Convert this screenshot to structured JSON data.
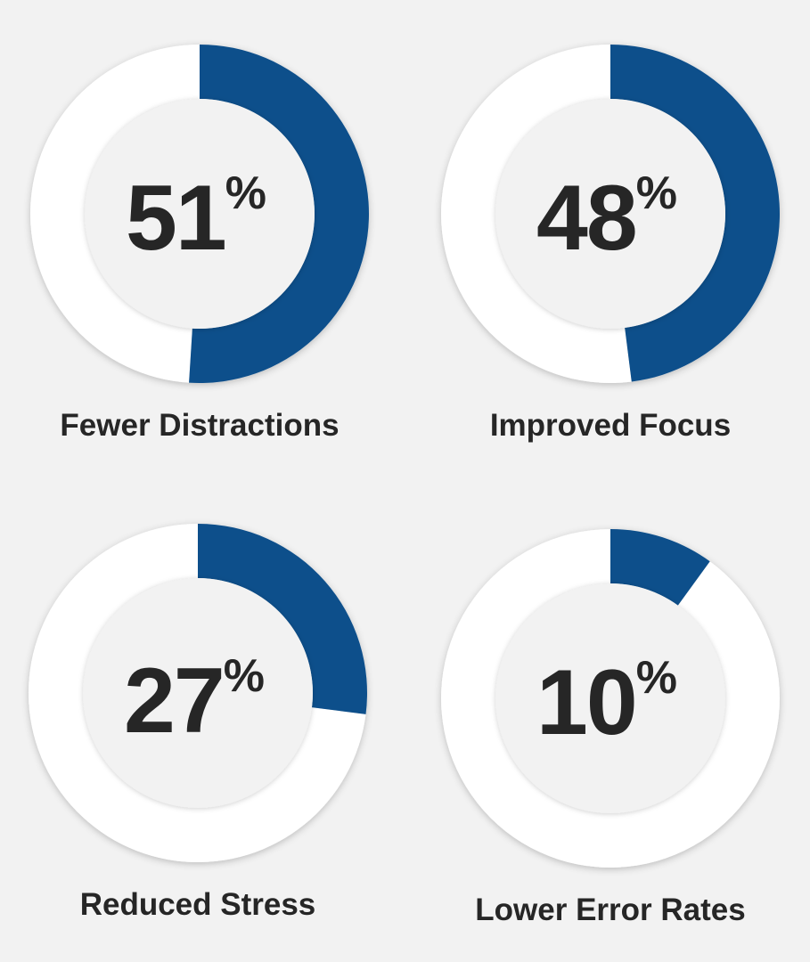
{
  "chart_data": [
    {
      "type": "pie",
      "style": "donut",
      "title": "Fewer Distractions",
      "value": 51,
      "value_label": "51",
      "unit": "%",
      "colors": {
        "filled": "#0d4f8b",
        "remainder": "#ffffff"
      }
    },
    {
      "type": "pie",
      "style": "donut",
      "title": "Improved Focus",
      "value": 48,
      "value_label": "48",
      "unit": "%",
      "colors": {
        "filled": "#0d4f8b",
        "remainder": "#ffffff"
      }
    },
    {
      "type": "pie",
      "style": "donut",
      "title": "Reduced Stress",
      "value": 27,
      "value_label": "27",
      "unit": "%",
      "colors": {
        "filled": "#0d4f8b",
        "remainder": "#ffffff"
      }
    },
    {
      "type": "pie",
      "style": "donut",
      "title": "Lower Error Rates",
      "value": 10,
      "value_label": "10",
      "unit": "%",
      "colors": {
        "filled": "#0d4f8b",
        "remainder": "#ffffff"
      }
    }
  ],
  "colors": {
    "background": "#f2f2f2",
    "accent": "#0d4f8b",
    "text": "#262626"
  }
}
